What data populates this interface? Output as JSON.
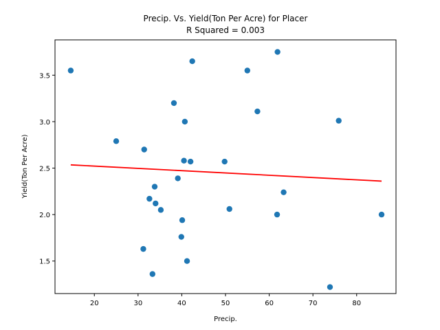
{
  "chart_data": {
    "type": "scatter",
    "title": "Precip. Vs. Yield(Ton Per Acre) for Placer",
    "subtitle": "R Squared =  0.003",
    "xlabel": "Precip.",
    "ylabel": "Yield(Ton Per Acre)",
    "xlim": [
      11,
      89
    ],
    "ylim": [
      1.15,
      3.88
    ],
    "xticks": [
      20,
      30,
      40,
      50,
      60,
      70,
      80
    ],
    "yticks": [
      1.5,
      2.0,
      2.5,
      3.0,
      3.5
    ],
    "ytick_labels": [
      "1.5",
      "2.0",
      "2.5",
      "3.0",
      "3.5"
    ],
    "grid": false,
    "colors": {
      "points": "#1f77b4",
      "fit_line": "#ff0000"
    },
    "points": [
      {
        "x": 14.6,
        "y": 3.55
      },
      {
        "x": 25.0,
        "y": 2.79
      },
      {
        "x": 31.2,
        "y": 1.63
      },
      {
        "x": 31.4,
        "y": 2.7
      },
      {
        "x": 32.6,
        "y": 2.17
      },
      {
        "x": 33.3,
        "y": 1.36
      },
      {
        "x": 33.8,
        "y": 2.3
      },
      {
        "x": 34.0,
        "y": 2.12
      },
      {
        "x": 35.2,
        "y": 2.05
      },
      {
        "x": 38.2,
        "y": 3.2
      },
      {
        "x": 39.1,
        "y": 2.39
      },
      {
        "x": 39.9,
        "y": 1.76
      },
      {
        "x": 40.1,
        "y": 1.94
      },
      {
        "x": 40.5,
        "y": 2.58
      },
      {
        "x": 40.7,
        "y": 3.0
      },
      {
        "x": 41.2,
        "y": 1.5
      },
      {
        "x": 42.0,
        "y": 2.57
      },
      {
        "x": 42.4,
        "y": 3.65
      },
      {
        "x": 49.8,
        "y": 2.57
      },
      {
        "x": 50.9,
        "y": 2.06
      },
      {
        "x": 55.0,
        "y": 3.55
      },
      {
        "x": 57.3,
        "y": 3.11
      },
      {
        "x": 61.8,
        "y": 2.0
      },
      {
        "x": 61.9,
        "y": 3.75
      },
      {
        "x": 63.3,
        "y": 2.24
      },
      {
        "x": 73.9,
        "y": 1.22
      },
      {
        "x": 75.9,
        "y": 3.01
      },
      {
        "x": 85.7,
        "y": 2.0
      }
    ],
    "fit_line": {
      "x": [
        14.6,
        85.7
      ],
      "y": [
        2.535,
        2.36
      ]
    }
  }
}
